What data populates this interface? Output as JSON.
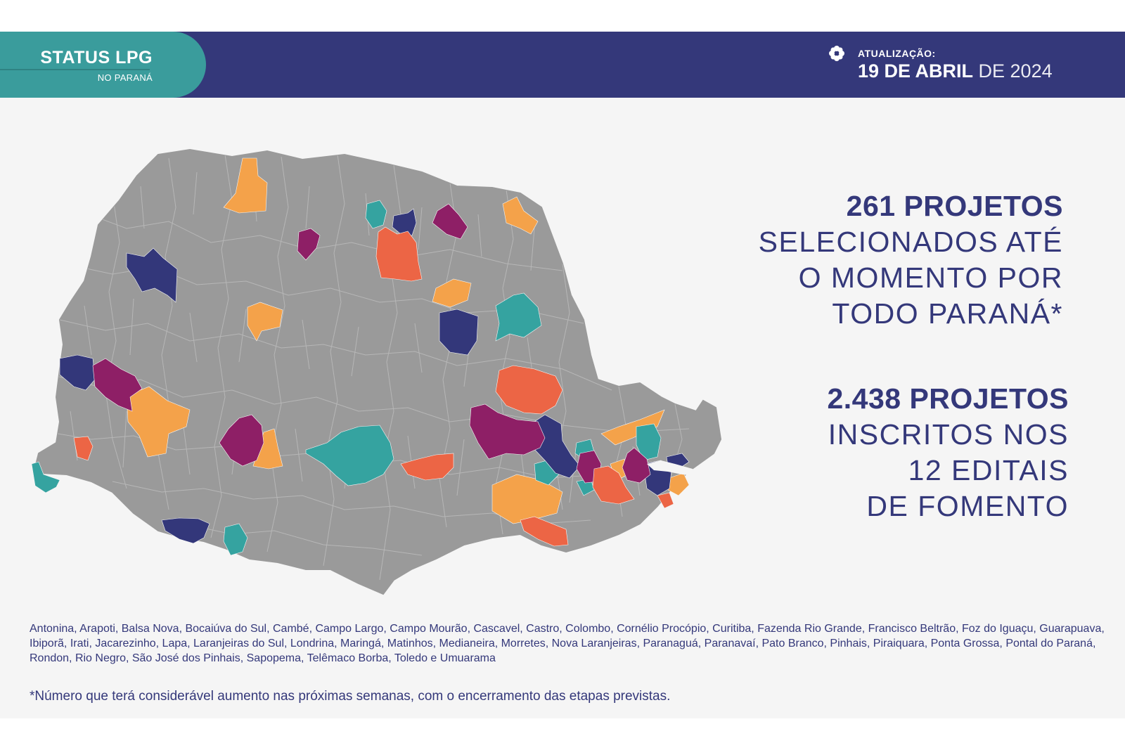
{
  "header": {
    "brand_title": "STATUS LPG",
    "brand_subtitle": "NO PARANÁ",
    "update_label": "ATUALIZAÇÃO:",
    "update_date_strong": "19 DE ABRIL",
    "update_date_light": " DE 2024",
    "update_icon": "gear-flower-icon"
  },
  "stats": {
    "selected_number": "261 PROJETOS",
    "selected_lines": [
      "SELECIONADOS ATÉ",
      "O MOMENTO POR",
      "TODO PARANÁ*"
    ],
    "enrolled_number": "2.438 PROJETOS",
    "enrolled_lines": [
      "INSCRITOS NOS",
      "12 EDITAIS",
      "DE FOMENTO"
    ]
  },
  "map": {
    "region": "Paraná",
    "colors": {
      "base": "#9a9a9a",
      "border": "#bdbdbd",
      "orange": "#f4a24a",
      "teal": "#35a3a0",
      "navy": "#33377a",
      "magenta": "#8e1f66",
      "coral": "#ec6545"
    }
  },
  "cities": "Antonina, Arapoti, Balsa Nova, Bocaiúva do Sul, Cambé, Campo Largo, Campo Mourão, Cascavel, Castro, Colombo, Cornélio Procópio, Curitiba, Fazenda Rio Grande, Francisco Beltrão, Foz do Iguaçu, Guarapuava, Ibiporã, Irati, Jacarezinho, Lapa, Laranjeiras do Sul, Londrina, Maringá, Matinhos, Medianeira, Morretes, Nova Laranjeiras, Paranaguá, Paranavaí, Pato Branco, Pinhais, Piraiquara, Ponta Grossa, Pontal do Paraná, Rondon, Rio Negro, São José dos Pinhais, Sapopema, Telêmaco Borba, Toledo e Umuarama",
  "footnote": "*Número que terá considerável aumento nas próximas semanas, com o encerramento das etapas previstas."
}
